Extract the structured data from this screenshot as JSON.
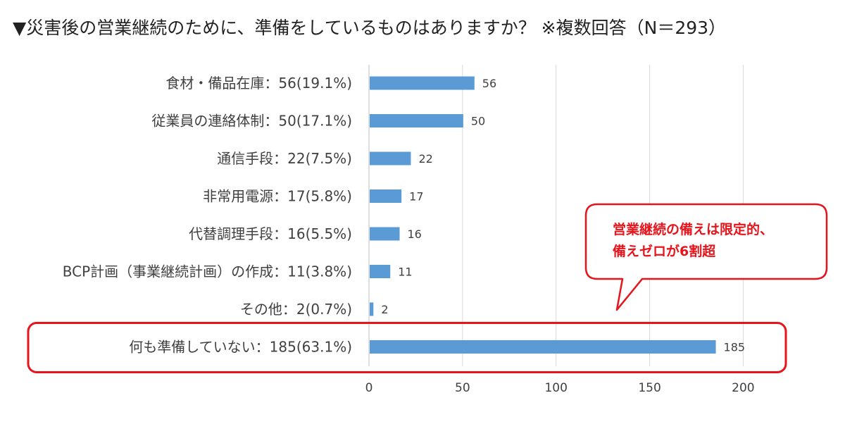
{
  "title": "▼災害後の営業継続のために、準備をしているものはありますか？ ※複数回答（N＝293）",
  "chart_data": {
    "type": "bar",
    "orientation": "horizontal",
    "categories": [
      "食材・備品在庫：56(19.1%)",
      "従業員の連絡体制：50(17.1%)",
      "通信手段：22(7.5%)",
      "非常用電源：17(5.8%)",
      "代替調理手段：16(5.5%)",
      "BCP計画（事業継続計画）の作成：11(3.8%)",
      "その他：2(0.7%)",
      "何も準備していない：185(63.1%)"
    ],
    "values": [
      56,
      50,
      22,
      17,
      16,
      11,
      2,
      185
    ],
    "data_labels": [
      "56",
      "50",
      "22",
      "17",
      "16",
      "11",
      "2",
      "185"
    ],
    "xlim": [
      0,
      200
    ],
    "xticks": [
      "0",
      "50",
      "100",
      "150",
      "200"
    ],
    "grid": true,
    "bar_color": "#5b9bd5",
    "highlight_color": "#e8141c",
    "highlighted_category": "何も準備していない：185(63.1%)",
    "callout": [
      "営業継続の備えは限定的、",
      "備えゼロが6割超"
    ]
  }
}
